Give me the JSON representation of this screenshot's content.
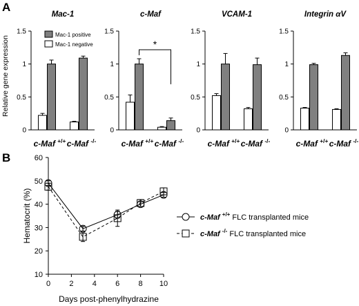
{
  "panel_a_label": "A",
  "panel_b_label": "B",
  "chart_data": [
    {
      "type": "bar",
      "panel": "A",
      "title": "Mac-1",
      "ylabel": "Relative gene expression",
      "ylim": [
        0,
        1.5
      ],
      "yticks": [
        "0",
        "0.5",
        "1",
        "1.5"
      ],
      "categories": [
        "c-Maf +/+",
        "c-Maf -/-"
      ],
      "series": [
        {
          "name": "Mac-1 negative",
          "color": "#ffffff",
          "values": [
            0.22,
            0.12
          ],
          "errors": [
            0.03,
            0.01
          ]
        },
        {
          "name": "Mac-1 positive",
          "color": "#808080",
          "values": [
            1.0,
            1.09
          ],
          "errors": [
            0.06,
            0.03
          ]
        }
      ],
      "legend": "top-left"
    },
    {
      "type": "bar",
      "panel": "A",
      "title": "c-Maf",
      "ylim": [
        0,
        1.5
      ],
      "yticks": [
        "0",
        "0.5",
        "1",
        "1.5"
      ],
      "categories": [
        "c-Maf +/+",
        "c-Maf -/-"
      ],
      "series": [
        {
          "name": "Mac-1 negative",
          "color": "#ffffff",
          "values": [
            0.42,
            0.04
          ],
          "errors": [
            0.11,
            0.01
          ]
        },
        {
          "name": "Mac-1 positive",
          "color": "#808080",
          "values": [
            1.0,
            0.14
          ],
          "errors": [
            0.08,
            0.04
          ]
        }
      ],
      "annotation": "*"
    },
    {
      "type": "bar",
      "panel": "A",
      "title": "VCAM-1",
      "ylim": [
        0,
        1.5
      ],
      "yticks": [
        "0",
        "0.5",
        "1",
        "1.5"
      ],
      "categories": [
        "c-Maf +/+",
        "c-Maf -/-"
      ],
      "series": [
        {
          "name": "Mac-1 negative",
          "color": "#ffffff",
          "values": [
            0.52,
            0.32
          ],
          "errors": [
            0.03,
            0.02
          ]
        },
        {
          "name": "Mac-1 positive",
          "color": "#808080",
          "values": [
            1.0,
            0.99
          ],
          "errors": [
            0.16,
            0.1
          ]
        }
      ]
    },
    {
      "type": "bar",
      "panel": "A",
      "title": "Integrin αV",
      "ylim": [
        0,
        1.5
      ],
      "yticks": [
        "0",
        "0.5",
        "1",
        "1.5"
      ],
      "categories": [
        "c-Maf +/+",
        "c-Maf -/-"
      ],
      "series": [
        {
          "name": "Mac-1 negative",
          "color": "#ffffff",
          "values": [
            0.33,
            0.31
          ],
          "errors": [
            0.01,
            0.01
          ]
        },
        {
          "name": "Mac-1 positive",
          "color": "#808080",
          "values": [
            0.99,
            1.13
          ],
          "errors": [
            0.02,
            0.04
          ]
        }
      ]
    },
    {
      "type": "line",
      "panel": "B",
      "xlabel": "Days post-phenylhydrazine",
      "ylabel": "Hematocrit (%)",
      "xlim": [
        0,
        10
      ],
      "ylim": [
        10,
        60
      ],
      "xticks": [
        "0",
        "2",
        "4",
        "6",
        "8",
        "10"
      ],
      "yticks": [
        "10",
        "20",
        "30",
        "40",
        "50",
        "60"
      ],
      "series": [
        {
          "name": "c-Maf +/+ FLC transplanted mice",
          "marker": "circle",
          "linestyle": "solid",
          "x": [
            0,
            3,
            6,
            8,
            10
          ],
          "y": [
            49,
            29.5,
            35.5,
            40,
            44
          ],
          "errors": [
            1.0,
            1.0,
            1.5,
            1.0,
            1.0
          ]
        },
        {
          "name": "c-Maf -/- FLC transplanted mice",
          "marker": "square",
          "linestyle": "dashed",
          "x": [
            0,
            3,
            6,
            8,
            10
          ],
          "y": [
            47.5,
            26,
            34,
            40.5,
            45.5
          ],
          "errors": [
            1.5,
            2.0,
            3.5,
            1.5,
            1.5
          ]
        }
      ],
      "legend": "right"
    }
  ]
}
